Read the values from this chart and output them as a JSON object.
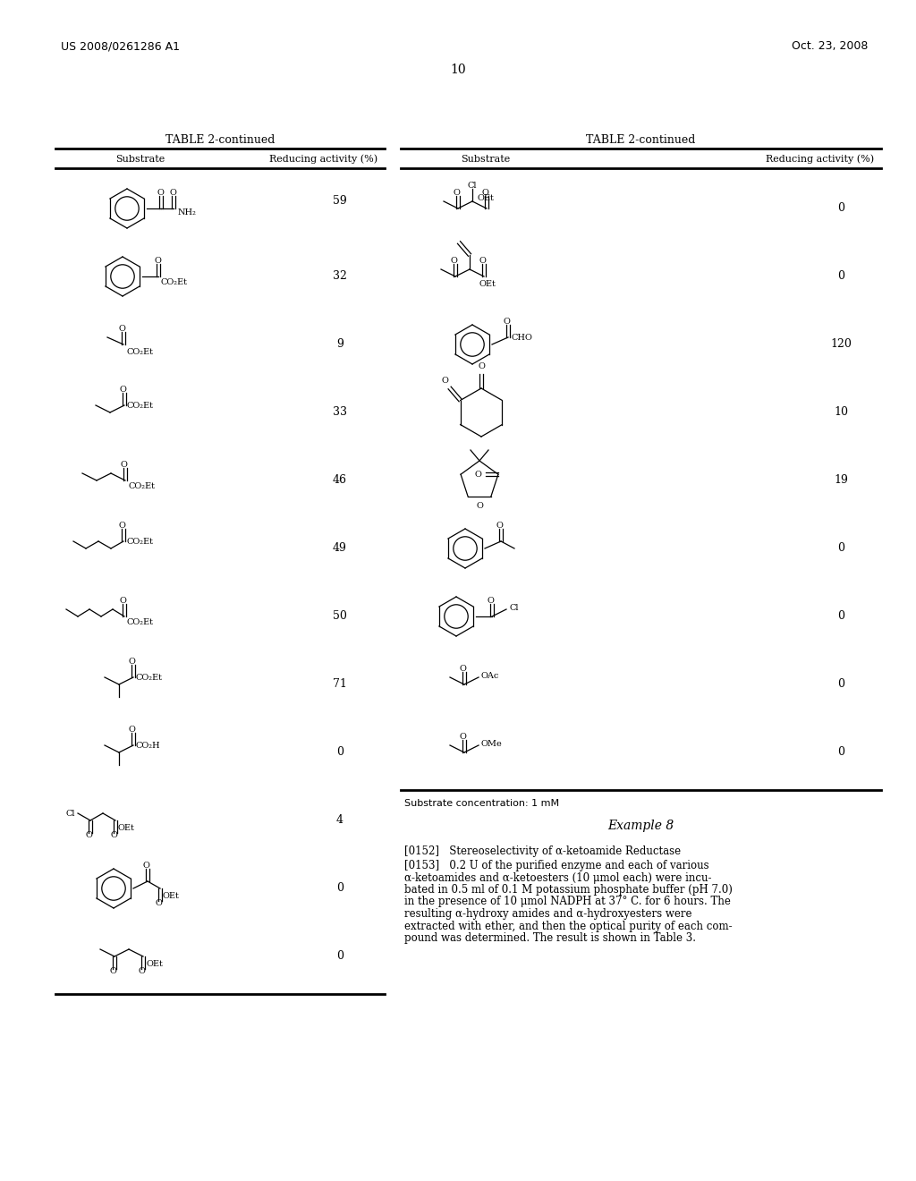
{
  "page_number": "10",
  "patent_number": "US 2008/0261286 A1",
  "patent_date": "Oct. 23, 2008",
  "background_color": "#ffffff",
  "text_color": "#000000",
  "table_title": "TABLE 2-continued",
  "col1_header": "Substrate",
  "col2_header": "Reducing activity (%)",
  "left_values": [
    "59",
    "32",
    "9",
    "33",
    "46",
    "49",
    "50",
    "71",
    "0",
    "4",
    "0",
    "0"
  ],
  "right_values": [
    "0",
    "0",
    "120",
    "10",
    "19",
    "0",
    "0",
    "0",
    "0"
  ],
  "example_title": "Example 8",
  "para_0152": "[0152]   Stereoselectivity of α-ketoamide Reductase",
  "para_0153_lines": [
    "[0153]   0.2 U of the purified enzyme and each of various",
    "α-ketoamides and α-ketoesters (10 μmol each) were incu-",
    "bated in 0.5 ml of 0.1 M potassium phosphate buffer (pH 7.0)",
    "in the presence of 10 μmol NADPH at 37° C. for 6 hours. The",
    "resulting α-hydroxy amides and α-hydroxyesters were",
    "extracted with ether, and then the optical purity of each com-",
    "pound was determined. The result is shown in Table 3."
  ],
  "footnote": "Substrate concentration: 1 mM"
}
